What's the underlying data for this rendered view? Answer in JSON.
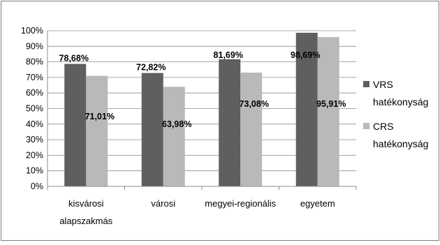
{
  "chart_data": {
    "type": "bar",
    "title": "",
    "xlabel": "",
    "ylabel": "",
    "categories": [
      "kisvárosi alapszakmás",
      "városi",
      "megyei-regionális",
      "egyetem"
    ],
    "category_lines": [
      [
        "kisvárosi",
        "alapszakmás"
      ],
      [
        "városi"
      ],
      [
        "megyei-regionális"
      ],
      [
        "egyetem"
      ]
    ],
    "series": [
      {
        "name": "VRS hatékonyság",
        "name_lines": [
          "VRS",
          "hatékonyság"
        ],
        "color": "#5f5f5f",
        "values": [
          78.68,
          72.82,
          81.69,
          98.69
        ],
        "labels": [
          "78,68%",
          "72,82%",
          "81,69%",
          "98,69%"
        ]
      },
      {
        "name": "CRS hatékonyság",
        "name_lines": [
          "CRS",
          "hatékonyság"
        ],
        "color": "#b9b9b9",
        "values": [
          71.01,
          63.98,
          73.08,
          95.91
        ],
        "labels": [
          "71,01%",
          "63,98%",
          "73,08%",
          "95,91%"
        ]
      }
    ],
    "ylim": [
      0,
      100
    ],
    "yticks": [
      0,
      10,
      20,
      30,
      40,
      50,
      60,
      70,
      80,
      90,
      100
    ],
    "ytick_labels": [
      "0%",
      "10%",
      "20%",
      "30%",
      "40%",
      "50%",
      "60%",
      "70%",
      "80%",
      "90%",
      "100%"
    ],
    "grid": true,
    "legend_position": "right"
  }
}
